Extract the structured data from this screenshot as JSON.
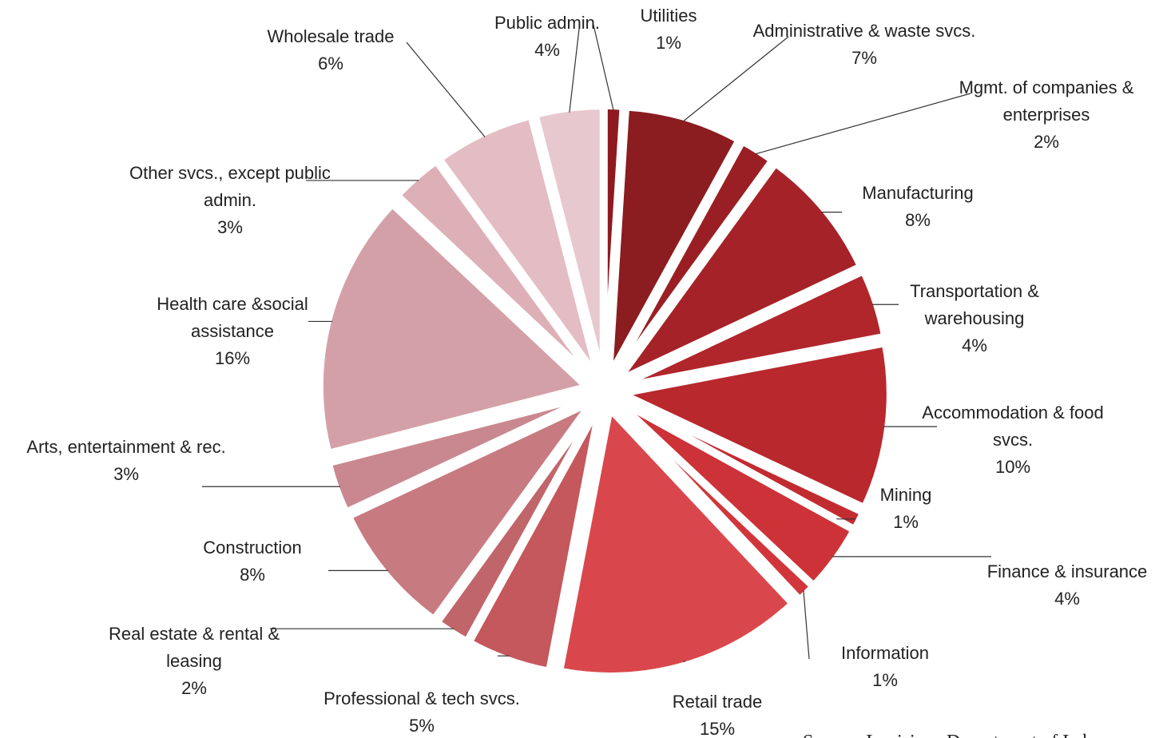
{
  "chart_data": {
    "type": "pie",
    "categories": [
      "Utilities",
      "Administrative & waste svcs.",
      "Mgmt. of companies & enterprises",
      "Manufacturing",
      "Transportation & warehousing",
      "Accommodation & food svcs.",
      "Mining",
      "Finance & insurance",
      "Information",
      "Retail trade",
      "Professional & tech svcs.",
      "Real estate & rental & leasing",
      "Construction",
      "Arts, entertainment & rec.",
      "Health care &social assistance",
      "Other svcs., except public admin.",
      "Wholesale trade",
      "Public admin."
    ],
    "values": [
      1,
      7,
      2,
      8,
      4,
      10,
      1,
      4,
      1,
      15,
      5,
      2,
      8,
      3,
      16,
      3,
      6,
      4
    ],
    "value_labels": [
      "1%",
      "7%",
      "2%",
      "8%",
      "4%",
      "10%",
      "1%",
      "4%",
      "1%",
      "15%",
      "5%",
      "2%",
      "8%",
      "3%",
      "16%",
      "3%",
      "6%",
      "4%"
    ],
    "colors": [
      "#8e1a1f",
      "#8b1c20",
      "#9a1f24",
      "#a52328",
      "#b0262b",
      "#b8282d",
      "#c22c31",
      "#cc3237",
      "#d0363b",
      "#d9474c",
      "#c4585c",
      "#c0656a",
      "#c77a80",
      "#c98890",
      "#d4a0a8",
      "#ddb0b8",
      "#e3bcc4",
      "#e8c8cf"
    ],
    "source": "Source: Louisiana Department of Labor"
  }
}
